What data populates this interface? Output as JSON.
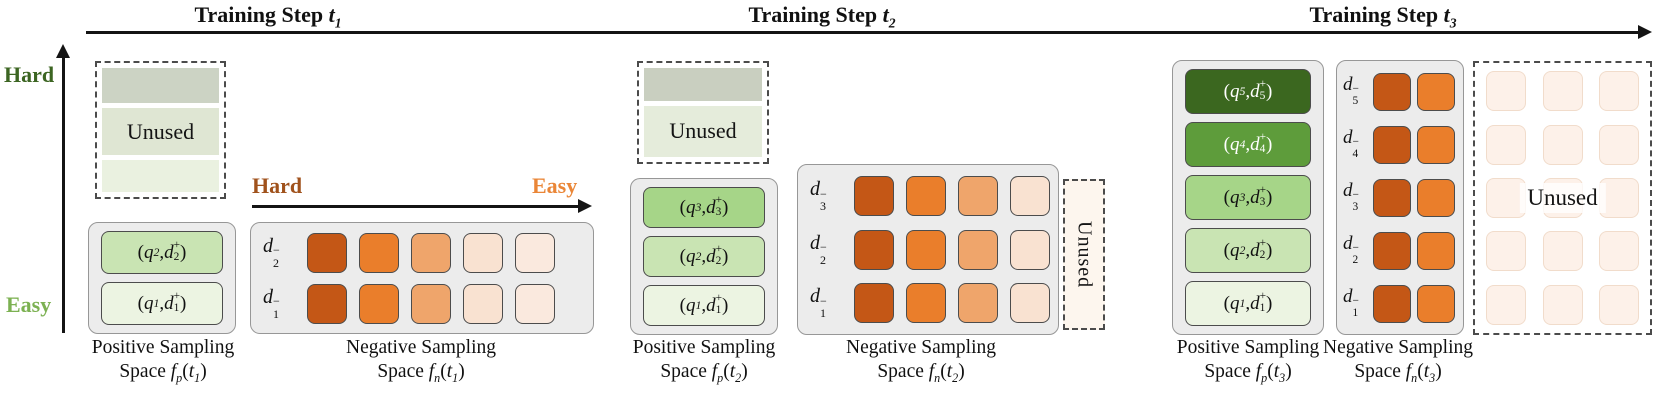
{
  "unused_label": "Unused",
  "axis": {
    "top": "Hard",
    "bottom": "Easy",
    "top_color": "#3c6522",
    "bottom_color": "#7cb152"
  },
  "neg_axis": {
    "left": "Hard",
    "right": "Easy",
    "left_color": "#a0521c",
    "right_color": "#ea8637"
  },
  "colors": {
    "panel_bg": "#ececec",
    "green_scale": [
      "#ecf4e2",
      "#c9e4b3",
      "#a6d588",
      "#5e9c3b",
      "#3b671f"
    ],
    "orange_scale": [
      "#c45716",
      "#ea7e2b",
      "#efa56b",
      "#f9e2d1",
      "#fae9de"
    ]
  },
  "steps": [
    {
      "title_parts": [
        {
          "k": "t",
          "v": "Training Step ",
          "i": 0
        },
        {
          "k": "t",
          "v": "t",
          "i": 1
        },
        {
          "k": "sub",
          "v": "1"
        }
      ],
      "positive": {
        "caption1": "Positive Sampling",
        "caption2_parts": [
          {
            "k": "t",
            "v": "Space ",
            "i": 0
          },
          {
            "k": "t",
            "v": "f",
            "i": 1
          },
          {
            "k": "sub",
            "v": "p"
          },
          {
            "k": "t",
            "v": "(",
            "i": 0
          },
          {
            "k": "t",
            "v": "t",
            "i": 1
          },
          {
            "k": "sub",
            "v": "1"
          },
          {
            "k": "t",
            "v": ")",
            "i": 0
          }
        ],
        "rows": [
          {
            "color": "#c9e4b3",
            "light_text": false,
            "label_parts": [
              {
                "k": "t",
                "v": "(",
                "i": 0
              },
              {
                "k": "t",
                "v": "q",
                "i": 1
              },
              {
                "k": "sub",
                "v": "2"
              },
              {
                "k": "t",
                "v": ", ",
                "i": 0
              },
              {
                "k": "t",
                "v": "d",
                "i": 1
              },
              {
                "k": "supsub",
                "sup": "+",
                "sub": "2"
              },
              {
                "k": "t",
                "v": ")",
                "i": 0
              }
            ]
          },
          {
            "color": "#ecf4e2",
            "light_text": false,
            "label_parts": [
              {
                "k": "t",
                "v": "(",
                "i": 0
              },
              {
                "k": "t",
                "v": "q",
                "i": 1
              },
              {
                "k": "sub",
                "v": "1"
              },
              {
                "k": "t",
                "v": ", ",
                "i": 0
              },
              {
                "k": "t",
                "v": "d",
                "i": 1
              },
              {
                "k": "supsub",
                "sup": "+",
                "sub": "1"
              },
              {
                "k": "t",
                "v": ")",
                "i": 0
              }
            ]
          }
        ]
      },
      "negative": {
        "caption1": "Negative Sampling",
        "caption2_parts": [
          {
            "k": "t",
            "v": "Space ",
            "i": 0
          },
          {
            "k": "t",
            "v": "f",
            "i": 1
          },
          {
            "k": "sub",
            "v": "n"
          },
          {
            "k": "t",
            "v": "(",
            "i": 0
          },
          {
            "k": "t",
            "v": "t",
            "i": 1
          },
          {
            "k": "sub",
            "v": "1"
          },
          {
            "k": "t",
            "v": ")",
            "i": 0
          }
        ],
        "rows": [
          {
            "label_parts": [
              {
                "k": "t",
                "v": "d",
                "i": 1
              },
              {
                "k": "supsub",
                "sup": "−",
                "sub": "2"
              }
            ],
            "squares": [
              "#c45716",
              "#ea7e2b",
              "#efa56b",
              "#f9e2d1",
              "#fae9de"
            ]
          },
          {
            "label_parts": [
              {
                "k": "t",
                "v": "d",
                "i": 1
              },
              {
                "k": "supsub",
                "sup": "−",
                "sub": "1"
              }
            ],
            "squares": [
              "#c45716",
              "#ea7e2b",
              "#efa56b",
              "#f9e2d1",
              "#fae9de"
            ]
          }
        ]
      },
      "unused_boxes": [
        {
          "type": "bands",
          "bands": [
            "#ccd3c4",
            "#dfe6d3",
            "#eaf1e0"
          ],
          "label_band": 1
        }
      ]
    },
    {
      "title_parts": [
        {
          "k": "t",
          "v": "Training Step ",
          "i": 0
        },
        {
          "k": "t",
          "v": "t",
          "i": 1
        },
        {
          "k": "sub",
          "v": "2"
        }
      ],
      "positive": {
        "caption1": "Positive Sampling",
        "caption2_parts": [
          {
            "k": "t",
            "v": "Space ",
            "i": 0
          },
          {
            "k": "t",
            "v": "f",
            "i": 1
          },
          {
            "k": "sub",
            "v": "p"
          },
          {
            "k": "t",
            "v": "(",
            "i": 0
          },
          {
            "k": "t",
            "v": "t",
            "i": 1
          },
          {
            "k": "sub",
            "v": "2"
          },
          {
            "k": "t",
            "v": ")",
            "i": 0
          }
        ],
        "rows": [
          {
            "color": "#a6d588",
            "light_text": false,
            "label_parts": [
              {
                "k": "t",
                "v": "(",
                "i": 0
              },
              {
                "k": "t",
                "v": "q",
                "i": 1
              },
              {
                "k": "sub",
                "v": "3"
              },
              {
                "k": "t",
                "v": ", ",
                "i": 0
              },
              {
                "k": "t",
                "v": "d",
                "i": 1
              },
              {
                "k": "supsub",
                "sup": "+",
                "sub": "3"
              },
              {
                "k": "t",
                "v": ")",
                "i": 0
              }
            ]
          },
          {
            "color": "#c9e4b3",
            "light_text": false,
            "label_parts": [
              {
                "k": "t",
                "v": "(",
                "i": 0
              },
              {
                "k": "t",
                "v": "q",
                "i": 1
              },
              {
                "k": "sub",
                "v": "2"
              },
              {
                "k": "t",
                "v": ", ",
                "i": 0
              },
              {
                "k": "t",
                "v": "d",
                "i": 1
              },
              {
                "k": "supsub",
                "sup": "+",
                "sub": "2"
              },
              {
                "k": "t",
                "v": ")",
                "i": 0
              }
            ]
          },
          {
            "color": "#ecf4e2",
            "light_text": false,
            "label_parts": [
              {
                "k": "t",
                "v": "(",
                "i": 0
              },
              {
                "k": "t",
                "v": "q",
                "i": 1
              },
              {
                "k": "sub",
                "v": "1"
              },
              {
                "k": "t",
                "v": ", ",
                "i": 0
              },
              {
                "k": "t",
                "v": "d",
                "i": 1
              },
              {
                "k": "supsub",
                "sup": "+",
                "sub": "1"
              },
              {
                "k": "t",
                "v": ")",
                "i": 0
              }
            ]
          }
        ]
      },
      "negative": {
        "caption1": "Negative Sampling",
        "caption2_parts": [
          {
            "k": "t",
            "v": "Space ",
            "i": 0
          },
          {
            "k": "t",
            "v": "f",
            "i": 1
          },
          {
            "k": "sub",
            "v": "n"
          },
          {
            "k": "t",
            "v": "(",
            "i": 0
          },
          {
            "k": "t",
            "v": "t",
            "i": 1
          },
          {
            "k": "sub",
            "v": "2"
          },
          {
            "k": "t",
            "v": ")",
            "i": 0
          }
        ],
        "rows": [
          {
            "label_parts": [
              {
                "k": "t",
                "v": "d",
                "i": 1
              },
              {
                "k": "supsub",
                "sup": "−",
                "sub": "3"
              }
            ],
            "squares": [
              "#c45716",
              "#ea7e2b",
              "#efa56b",
              "#f9e2d1"
            ]
          },
          {
            "label_parts": [
              {
                "k": "t",
                "v": "d",
                "i": 1
              },
              {
                "k": "supsub",
                "sup": "−",
                "sub": "2"
              }
            ],
            "squares": [
              "#c45716",
              "#ea7e2b",
              "#efa56b",
              "#f9e2d1"
            ]
          },
          {
            "label_parts": [
              {
                "k": "t",
                "v": "d",
                "i": 1
              },
              {
                "k": "supsub",
                "sup": "−",
                "sub": "1"
              }
            ],
            "squares": [
              "#c45716",
              "#ea7e2b",
              "#efa56b",
              "#f9e2d1"
            ]
          }
        ]
      },
      "unused_boxes": [
        {
          "type": "bands",
          "bands": [
            "#c9cfc0",
            "#e5ecdb"
          ],
          "label_band": 1
        },
        {
          "type": "vertical",
          "bg": "#fdf6ee"
        }
      ]
    },
    {
      "title_parts": [
        {
          "k": "t",
          "v": "Training Step ",
          "i": 0
        },
        {
          "k": "t",
          "v": "t",
          "i": 1
        },
        {
          "k": "sub",
          "v": "3"
        }
      ],
      "positive": {
        "caption1": "Positive Sampling",
        "caption2_parts": [
          {
            "k": "t",
            "v": "Space ",
            "i": 0
          },
          {
            "k": "t",
            "v": "f",
            "i": 1
          },
          {
            "k": "sub",
            "v": "p"
          },
          {
            "k": "t",
            "v": "(",
            "i": 0
          },
          {
            "k": "t",
            "v": "t",
            "i": 1
          },
          {
            "k": "sub",
            "v": "3"
          },
          {
            "k": "t",
            "v": ")",
            "i": 0
          }
        ],
        "rows": [
          {
            "color": "#3b671f",
            "light_text": true,
            "label_parts": [
              {
                "k": "t",
                "v": "(",
                "i": 0
              },
              {
                "k": "t",
                "v": "q",
                "i": 1
              },
              {
                "k": "sub",
                "v": "5"
              },
              {
                "k": "t",
                "v": ", ",
                "i": 0
              },
              {
                "k": "t",
                "v": "d",
                "i": 1
              },
              {
                "k": "supsub",
                "sup": "+",
                "sub": "5"
              },
              {
                "k": "t",
                "v": ")",
                "i": 0
              }
            ]
          },
          {
            "color": "#5e9c3b",
            "light_text": true,
            "label_parts": [
              {
                "k": "t",
                "v": "(",
                "i": 0
              },
              {
                "k": "t",
                "v": "q",
                "i": 1
              },
              {
                "k": "sub",
                "v": "4"
              },
              {
                "k": "t",
                "v": ", ",
                "i": 0
              },
              {
                "k": "t",
                "v": "d",
                "i": 1
              },
              {
                "k": "supsub",
                "sup": "+",
                "sub": "4"
              },
              {
                "k": "t",
                "v": ")",
                "i": 0
              }
            ]
          },
          {
            "color": "#a6d588",
            "light_text": false,
            "label_parts": [
              {
                "k": "t",
                "v": "(",
                "i": 0
              },
              {
                "k": "t",
                "v": "q",
                "i": 1
              },
              {
                "k": "sub",
                "v": "3"
              },
              {
                "k": "t",
                "v": ", ",
                "i": 0
              },
              {
                "k": "t",
                "v": "d",
                "i": 1
              },
              {
                "k": "supsub",
                "sup": "+",
                "sub": "3"
              },
              {
                "k": "t",
                "v": ")",
                "i": 0
              }
            ]
          },
          {
            "color": "#c9e4b3",
            "light_text": false,
            "label_parts": [
              {
                "k": "t",
                "v": "(",
                "i": 0
              },
              {
                "k": "t",
                "v": "q",
                "i": 1
              },
              {
                "k": "sub",
                "v": "2"
              },
              {
                "k": "t",
                "v": ", ",
                "i": 0
              },
              {
                "k": "t",
                "v": "d",
                "i": 1
              },
              {
                "k": "supsub",
                "sup": "+",
                "sub": "2"
              },
              {
                "k": "t",
                "v": ")",
                "i": 0
              }
            ]
          },
          {
            "color": "#ecf4e2",
            "light_text": false,
            "label_parts": [
              {
                "k": "t",
                "v": "(",
                "i": 0
              },
              {
                "k": "t",
                "v": "q",
                "i": 1
              },
              {
                "k": "sub",
                "v": "1"
              },
              {
                "k": "t",
                "v": ", ",
                "i": 0
              },
              {
                "k": "t",
                "v": "d",
                "i": 1
              },
              {
                "k": "supsub",
                "sup": "+",
                "sub": "1"
              },
              {
                "k": "t",
                "v": ")",
                "i": 0
              }
            ]
          }
        ]
      },
      "negative": {
        "caption1": "Negative Sampling",
        "caption2_parts": [
          {
            "k": "t",
            "v": "Space ",
            "i": 0
          },
          {
            "k": "t",
            "v": "f",
            "i": 1
          },
          {
            "k": "sub",
            "v": "n"
          },
          {
            "k": "t",
            "v": "(",
            "i": 0
          },
          {
            "k": "t",
            "v": "t",
            "i": 1
          },
          {
            "k": "sub",
            "v": "3"
          },
          {
            "k": "t",
            "v": ")",
            "i": 0
          }
        ],
        "rows": [
          {
            "label_parts": [
              {
                "k": "t",
                "v": "d",
                "i": 1
              },
              {
                "k": "supsub",
                "sup": "−",
                "sub": "5"
              }
            ],
            "squares": [
              "#c45716",
              "#ea7e2b"
            ]
          },
          {
            "label_parts": [
              {
                "k": "t",
                "v": "d",
                "i": 1
              },
              {
                "k": "supsub",
                "sup": "−",
                "sub": "4"
              }
            ],
            "squares": [
              "#c45716",
              "#ea7e2b"
            ]
          },
          {
            "label_parts": [
              {
                "k": "t",
                "v": "d",
                "i": 1
              },
              {
                "k": "supsub",
                "sup": "−",
                "sub": "3"
              }
            ],
            "squares": [
              "#c45716",
              "#ea7e2b"
            ]
          },
          {
            "label_parts": [
              {
                "k": "t",
                "v": "d",
                "i": 1
              },
              {
                "k": "supsub",
                "sup": "−",
                "sub": "2"
              }
            ],
            "squares": [
              "#c45716",
              "#ea7e2b"
            ]
          },
          {
            "label_parts": [
              {
                "k": "t",
                "v": "d",
                "i": 1
              },
              {
                "k": "supsub",
                "sup": "−",
                "sub": "1"
              }
            ],
            "squares": [
              "#c45716",
              "#ea7e2b"
            ]
          }
        ]
      },
      "unused_boxes": [
        {
          "type": "grid",
          "cols": 3,
          "rows": 5,
          "square_color": "#fdf1e9",
          "square_border": "#f1dccb"
        }
      ]
    }
  ]
}
